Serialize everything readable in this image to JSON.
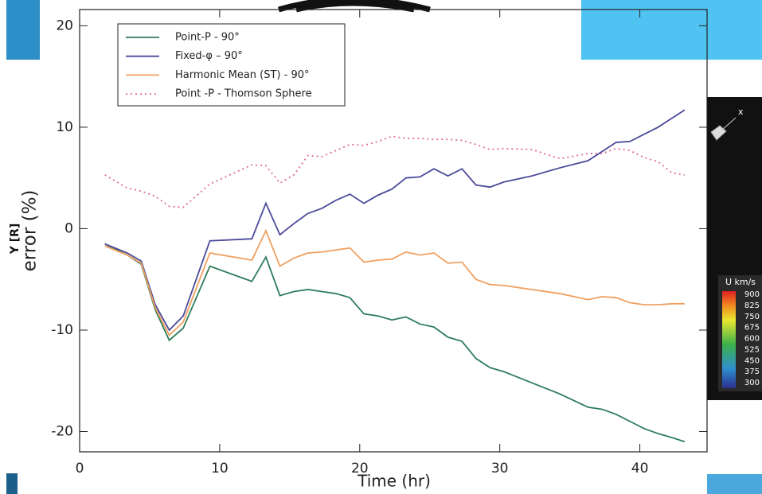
{
  "chart_data": {
    "type": "line",
    "x_label": "Time (hr)",
    "y_label": "error (%)",
    "x": [
      1.8,
      3.4,
      4.4,
      5.4,
      6.4,
      7.4,
      9.3,
      12.3,
      13.3,
      14.3,
      15.3,
      16.3,
      17.3,
      18.3,
      19.3,
      20.3,
      21.3,
      22.3,
      23.3,
      24.3,
      25.3,
      26.3,
      27.3,
      28.3,
      29.3,
      30.3,
      32.3,
      34.3,
      36.3,
      37.3,
      38.3,
      39.3,
      40.3,
      41.3,
      42.3,
      43.2
    ],
    "series": [
      {
        "name": "Point-P - 90°",
        "color": "#2e7d5b",
        "line_style": "solid",
        "values": [
          -1.5,
          -2.6,
          -3.5,
          -8.0,
          -11.0,
          -9.8,
          -3.7,
          -5.2,
          -2.8,
          -6.6,
          -6.2,
          -6.0,
          -6.2,
          -6.4,
          -6.8,
          -8.4,
          -8.6,
          -9.0,
          -8.7,
          -9.4,
          -9.7,
          -10.7,
          -11.1,
          -12.8,
          -13.7,
          -14.1,
          -15.2,
          -16.3,
          -17.6,
          -17.8,
          -18.3,
          -19.0,
          -19.7,
          -20.2,
          -20.6,
          -21.0
        ]
      },
      {
        "name": "Fixed-φ – 90°",
        "color": "#4b4a9a",
        "line_style": "solid",
        "values": [
          -1.5,
          -2.4,
          -3.2,
          -7.5,
          -10.0,
          -8.6,
          -1.2,
          -1.0,
          2.5,
          -0.6,
          0.5,
          1.5,
          2.0,
          2.8,
          3.4,
          2.5,
          3.3,
          3.9,
          5.0,
          5.1,
          5.9,
          5.2,
          5.9,
          4.3,
          4.1,
          4.6,
          5.2,
          6.0,
          6.7,
          7.6,
          8.5,
          8.6,
          9.3,
          10.0,
          10.9,
          11.7
        ]
      },
      {
        "name": "Harmonic Mean (ST) - 90°",
        "color": "#f0a060",
        "line_style": "solid",
        "values": [
          -1.7,
          -2.6,
          -3.4,
          -7.8,
          -10.5,
          -9.2,
          -2.4,
          -3.1,
          -0.2,
          -3.7,
          -2.9,
          -2.4,
          -2.3,
          -2.1,
          -1.9,
          -3.3,
          -3.1,
          -3.0,
          -2.3,
          -2.6,
          -2.4,
          -3.4,
          -3.3,
          -5.0,
          -5.5,
          -5.6,
          -6.0,
          -6.4,
          -7.0,
          -6.7,
          -6.8,
          -7.3,
          -7.5,
          -7.5,
          -7.4,
          -7.4
        ]
      },
      {
        "name": "Point -P - Thomson Sphere",
        "color": "#e06a9a",
        "line_style": "dotted",
        "values": [
          5.3,
          4.0,
          3.7,
          3.2,
          2.2,
          2.1,
          4.4,
          6.3,
          6.2,
          4.5,
          5.3,
          7.2,
          7.1,
          7.7,
          8.3,
          8.2,
          8.6,
          9.1,
          8.9,
          8.9,
          8.8,
          8.8,
          8.7,
          8.3,
          7.8,
          7.9,
          7.8,
          6.9,
          7.4,
          7.4,
          7.9,
          7.7,
          7.0,
          6.6,
          5.5,
          5.3
        ]
      }
    ],
    "xlim": [
      0,
      44.8
    ],
    "ylim": [
      -22,
      21.6
    ],
    "xticks": [
      0,
      10,
      20,
      30,
      40
    ],
    "yticks": [
      -20,
      -10,
      0,
      10,
      20
    ],
    "legend": "upper left"
  },
  "overlay": {
    "axis_label": "Y [R]",
    "axis_glyph": "x",
    "colorbar": {
      "title": "U km/s",
      "ticks": [
        900,
        825,
        750,
        675,
        600,
        525,
        450,
        375,
        300
      ]
    }
  }
}
